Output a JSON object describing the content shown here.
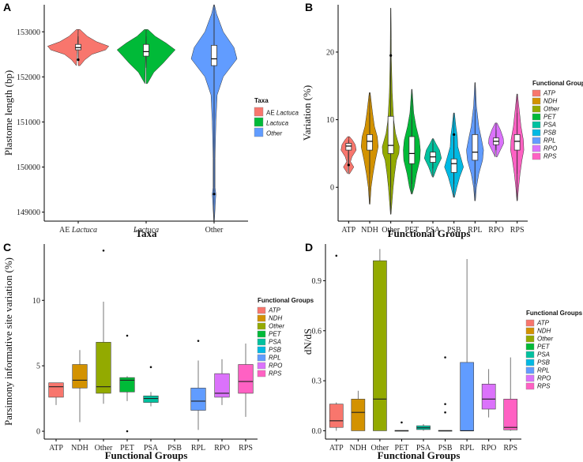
{
  "chart_data": [
    {
      "panel": "A",
      "type": "violin",
      "xlabel": "Taxa",
      "ylabel": "Plastome length (bp)",
      "ylim": [
        148800,
        153600
      ],
      "yticks": [
        149000,
        150000,
        151000,
        152000,
        153000
      ],
      "categories": [
        {
          "prefix": "AE ",
          "name": "Lactuca",
          "italic": true
        },
        {
          "prefix": "",
          "name": "Lactuca",
          "italic": true
        },
        {
          "prefix": "",
          "name": "Other",
          "italic": false
        }
      ],
      "legend_title": "Taxa",
      "legend": [
        {
          "prefix": "AE ",
          "name": "Lactuca",
          "color": "#F8766D"
        },
        {
          "prefix": "",
          "name": "Lactuca",
          "color": "#00BA38"
        },
        {
          "prefix": "",
          "name": "Other",
          "color": "#619CFF"
        }
      ],
      "colors": [
        "#F8766D",
        "#00BA38",
        "#619CFF"
      ],
      "violins": [
        {
          "profile": [
            [
              152250,
              0.06
            ],
            [
              152380,
              0.22
            ],
            [
              152500,
              0.45
            ],
            [
              152600,
              0.9
            ],
            [
              152680,
              1.0
            ],
            [
              152780,
              0.6
            ],
            [
              152900,
              0.3
            ],
            [
              153050,
              0.06
            ]
          ],
          "box": {
            "q1": 152600,
            "median": 152650,
            "q3": 152720,
            "lo": 152380,
            "hi": 152900
          },
          "points": [
            152380
          ]
        },
        {
          "profile": [
            [
              151850,
              0.04
            ],
            [
              152100,
              0.25
            ],
            [
              152300,
              0.55
            ],
            [
              152450,
              0.75
            ],
            [
              152600,
              0.95
            ],
            [
              152750,
              0.65
            ],
            [
              152900,
              0.3
            ],
            [
              153050,
              0.06
            ]
          ],
          "box": {
            "q1": 152460,
            "median": 152560,
            "q3": 152720,
            "lo": 152200,
            "hi": 152900
          },
          "points": []
        },
        {
          "profile": [
            [
              148800,
              0.01
            ],
            [
              149300,
              0.05
            ],
            [
              149400,
              0.06
            ],
            [
              149550,
              0.03
            ],
            [
              150200,
              0.03
            ],
            [
              151000,
              0.06
            ],
            [
              151600,
              0.1
            ],
            [
              152000,
              0.3
            ],
            [
              152400,
              0.75
            ],
            [
              152650,
              0.65
            ],
            [
              153000,
              0.3
            ],
            [
              153400,
              0.08
            ],
            [
              153600,
              0.01
            ]
          ],
          "box": {
            "q1": 152250,
            "median": 152400,
            "q3": 152700,
            "lo": 149400,
            "hi": 153400
          },
          "points": [
            149400
          ]
        }
      ]
    },
    {
      "panel": "B",
      "type": "violin",
      "xlabel": "Functional Groups",
      "ylabel": "Variation (%)",
      "ylim": [
        -5,
        27
      ],
      "yticks": [
        0,
        10,
        20
      ],
      "categories": [
        "ATP",
        "NDH",
        "Other",
        "PET",
        "PSA",
        "PSB",
        "RPL",
        "RPO",
        "RPS"
      ],
      "legend_title": "Functional Groups",
      "legend": [
        "ATP",
        "NDH",
        "Other",
        "PET",
        "PSA",
        "PSB",
        "RPL",
        "RPO",
        "RPS"
      ],
      "colors": [
        "#F8766D",
        "#D39200",
        "#93AA00",
        "#00BA38",
        "#00C19F",
        "#00B9E3",
        "#619CFF",
        "#DB72FB",
        "#FF61C3"
      ],
      "violins": [
        {
          "profile": [
            [
              2,
              0.1
            ],
            [
              3,
              0.55
            ],
            [
              3.8,
              0.2
            ],
            [
              4.5,
              0.35
            ],
            [
              5.5,
              0.8
            ],
            [
              6.3,
              0.7
            ],
            [
              7,
              0.4
            ],
            [
              7.5,
              0.1
            ]
          ],
          "box": {
            "q1": 5.5,
            "median": 6.1,
            "q3": 6.5,
            "lo": 3.2,
            "hi": 7
          },
          "points": [
            3.3
          ]
        },
        {
          "profile": [
            [
              -2.5,
              0.03
            ],
            [
              0,
              0.15
            ],
            [
              2,
              0.35
            ],
            [
              4,
              0.6
            ],
            [
              6,
              0.9
            ],
            [
              7.5,
              0.8
            ],
            [
              9,
              0.5
            ],
            [
              11,
              0.3
            ],
            [
              14,
              0.05
            ]
          ],
          "box": {
            "q1": 5.5,
            "median": 6.8,
            "q3": 7.8,
            "lo": 2,
            "hi": 11
          },
          "points": []
        },
        {
          "profile": [
            [
              -4,
              0.03
            ],
            [
              0,
              0.25
            ],
            [
              2,
              0.4
            ],
            [
              4,
              0.6
            ],
            [
              5,
              0.85
            ],
            [
              6,
              0.9
            ],
            [
              7,
              0.7
            ],
            [
              8,
              0.5
            ],
            [
              10,
              0.3
            ],
            [
              14,
              0.15
            ],
            [
              19,
              0.06
            ],
            [
              22,
              0.05
            ],
            [
              26.5,
              0.02
            ]
          ],
          "box": {
            "q1": 5,
            "median": 6.2,
            "q3": 10.5,
            "lo": 0,
            "hi": 20
          },
          "points": [
            19.5
          ]
        },
        {
          "profile": [
            [
              -1,
              0.05
            ],
            [
              0,
              0.25
            ],
            [
              2,
              0.5
            ],
            [
              4,
              0.85
            ],
            [
              5.5,
              0.9
            ],
            [
              7,
              0.8
            ],
            [
              9,
              0.45
            ],
            [
              11,
              0.2
            ],
            [
              14.5,
              0.03
            ]
          ],
          "box": {
            "q1": 3.5,
            "median": 5,
            "q3": 7.5,
            "lo": 0.5,
            "hi": 10
          },
          "points": []
        },
        {
          "profile": [
            [
              1.5,
              0.05
            ],
            [
              3,
              0.45
            ],
            [
              4.3,
              0.9
            ],
            [
              5.5,
              0.7
            ],
            [
              6.5,
              0.3
            ],
            [
              7.2,
              0.05
            ]
          ],
          "box": {
            "q1": 3.7,
            "median": 4.5,
            "q3": 5.2,
            "lo": 2.8,
            "hi": 6.5
          },
          "points": []
        },
        {
          "profile": [
            [
              -1.5,
              0.05
            ],
            [
              0,
              0.3
            ],
            [
              1.5,
              0.6
            ],
            [
              3,
              1.0
            ],
            [
              4.5,
              0.7
            ],
            [
              6,
              0.4
            ],
            [
              7.5,
              0.35
            ],
            [
              9,
              0.2
            ],
            [
              11,
              0.05
            ]
          ],
          "box": {
            "q1": 2.2,
            "median": 3.5,
            "q3": 4.2,
            "lo": 0.5,
            "hi": 7.5
          },
          "points": [
            7.8
          ]
        },
        {
          "profile": [
            [
              -2,
              0.04
            ],
            [
              0,
              0.15
            ],
            [
              2,
              0.4
            ],
            [
              4,
              0.8
            ],
            [
              5.5,
              0.9
            ],
            [
              7,
              0.7
            ],
            [
              9,
              0.4
            ],
            [
              12,
              0.15
            ],
            [
              15.5,
              0.03
            ]
          ],
          "box": {
            "q1": 4,
            "median": 5.2,
            "q3": 7.8,
            "lo": 0.5,
            "hi": 11.5
          },
          "points": []
        },
        {
          "profile": [
            [
              4.5,
              0.1
            ],
            [
              5.5,
              0.45
            ],
            [
              6.5,
              0.8
            ],
            [
              7.3,
              0.75
            ],
            [
              8.5,
              0.45
            ],
            [
              9.5,
              0.1
            ]
          ],
          "box": {
            "q1": 6.3,
            "median": 6.8,
            "q3": 7.3,
            "lo": 5.5,
            "hi": 8.5
          },
          "points": []
        },
        {
          "profile": [
            [
              -2,
              0.03
            ],
            [
              0,
              0.15
            ],
            [
              2,
              0.3
            ],
            [
              4,
              0.5
            ],
            [
              5.5,
              0.7
            ],
            [
              7,
              0.65
            ],
            [
              9,
              0.4
            ],
            [
              11,
              0.25
            ],
            [
              13.8,
              0.04
            ]
          ],
          "box": {
            "q1": 5.5,
            "median": 6.8,
            "q3": 7.8,
            "lo": 2,
            "hi": 11
          },
          "points": []
        }
      ]
    },
    {
      "panel": "C",
      "type": "box",
      "xlabel": "Functional Groups",
      "ylabel": "Parsimony informative site variation (%)",
      "ylim": [
        -0.6,
        14.3
      ],
      "yticks": [
        0,
        5,
        10
      ],
      "categories": [
        "ATP",
        "NDH",
        "Other",
        "PET",
        "PSA",
        "PSB",
        "RPL",
        "RPO",
        "RPS"
      ],
      "legend_title": "Functional Groups",
      "legend": [
        "ATP",
        "NDH",
        "Other",
        "PET",
        "PSA",
        "PSB",
        "RPL",
        "RPO",
        "RPS"
      ],
      "colors": [
        "#F8766D",
        "#D39200",
        "#93AA00",
        "#00BA38",
        "#00C19F",
        "#00B9E3",
        "#619CFF",
        "#DB72FB",
        "#FF61C3"
      ],
      "boxes": [
        {
          "lo": 2,
          "q1": 2.6,
          "median": 3.4,
          "q3": 3.7,
          "hi": 3.7,
          "outliers": []
        },
        {
          "lo": 0.7,
          "q1": 3.3,
          "median": 3.9,
          "q3": 5.1,
          "hi": 6.2,
          "outliers": []
        },
        {
          "lo": 2.1,
          "q1": 2.9,
          "median": 3.4,
          "q3": 6.8,
          "hi": 9.9,
          "outliers": [
            13.8
          ]
        },
        {
          "lo": 2.3,
          "q1": 3.0,
          "median": 3.9,
          "q3": 4.1,
          "hi": 4.2,
          "outliers": [
            7.3,
            0
          ]
        },
        {
          "lo": 1.9,
          "q1": 2.2,
          "median": 2.5,
          "q3": 2.7,
          "hi": 3.0,
          "outliers": [
            4.9
          ]
        },
        {
          "lo": 0.1,
          "q1": 1.6,
          "median": 2.3,
          "q3": 3.3,
          "hi": 5.4,
          "outliers": [
            6.9
          ]
        },
        {
          "lo": 2.0,
          "q1": 2.6,
          "median": 2.9,
          "q3": 4.4,
          "hi": 5.5,
          "outliers": []
        },
        {
          "lo": 1.1,
          "q1": 2.9,
          "median": 3.8,
          "q3": 5.1,
          "hi": 6.7,
          "outliers": []
        }
      ],
      "box_positions": [
        1,
        2,
        3,
        4,
        5,
        7,
        8,
        9
      ]
    },
    {
      "panel": "D",
      "type": "box",
      "xlabel": "Functional Groups",
      "ylabel": "dN/dS",
      "ylim": [
        -0.05,
        1.12
      ],
      "yticks": [
        0.0,
        0.3,
        0.6,
        0.9
      ],
      "yticklabels": [
        "0.0",
        "0.3",
        "0.6",
        "0.9"
      ],
      "categories": [
        "ATP",
        "NDH",
        "Other",
        "PET",
        "PSA",
        "PSB",
        "RPL",
        "RPO",
        "RPS"
      ],
      "legend_title": "Functional Groups",
      "legend": [
        "ATP",
        "NDH",
        "Other",
        "PET",
        "PSA",
        "PSB",
        "RPL",
        "RPO",
        "RPS"
      ],
      "colors": [
        "#F8766D",
        "#D39200",
        "#93AA00",
        "#00BA38",
        "#00C19F",
        "#00B9E3",
        "#619CFF",
        "#DB72FB",
        "#FF61C3"
      ],
      "boxes": [
        {
          "lo": 0,
          "q1": 0.02,
          "median": 0.06,
          "q3": 0.16,
          "hi": 0.17,
          "outliers": [
            1.05
          ]
        },
        {
          "lo": 0,
          "q1": 0.0,
          "median": 0.11,
          "q3": 0.19,
          "hi": 0.24,
          "outliers": []
        },
        {
          "lo": 0,
          "q1": 0.0,
          "median": 0.19,
          "q3": 1.02,
          "hi": 1.09,
          "outliers": []
        },
        {
          "lo": 0,
          "q1": 0.0,
          "median": 0.0,
          "q3": 0.002,
          "hi": 0.002,
          "outliers": [
            0.05
          ]
        },
        {
          "lo": 0,
          "q1": 0.007,
          "median": 0.018,
          "q3": 0.03,
          "hi": 0.04,
          "outliers": []
        },
        {
          "lo": 0,
          "q1": 0.0,
          "median": 0.0,
          "q3": 0.002,
          "hi": 0.002,
          "outliers": [
            0.44,
            0.16,
            0.11
          ]
        },
        {
          "lo": 0,
          "q1": 0.0,
          "median": 0.0,
          "q3": 0.41,
          "hi": 1.03,
          "outliers": []
        },
        {
          "lo": 0.08,
          "q1": 0.13,
          "median": 0.19,
          "q3": 0.28,
          "hi": 0.37,
          "outliers": []
        },
        {
          "lo": 0,
          "q1": 0.005,
          "median": 0.02,
          "q3": 0.19,
          "hi": 0.44,
          "outliers": []
        }
      ],
      "box_positions": [
        1,
        2,
        3,
        4,
        5,
        6,
        7,
        8,
        9
      ]
    }
  ]
}
